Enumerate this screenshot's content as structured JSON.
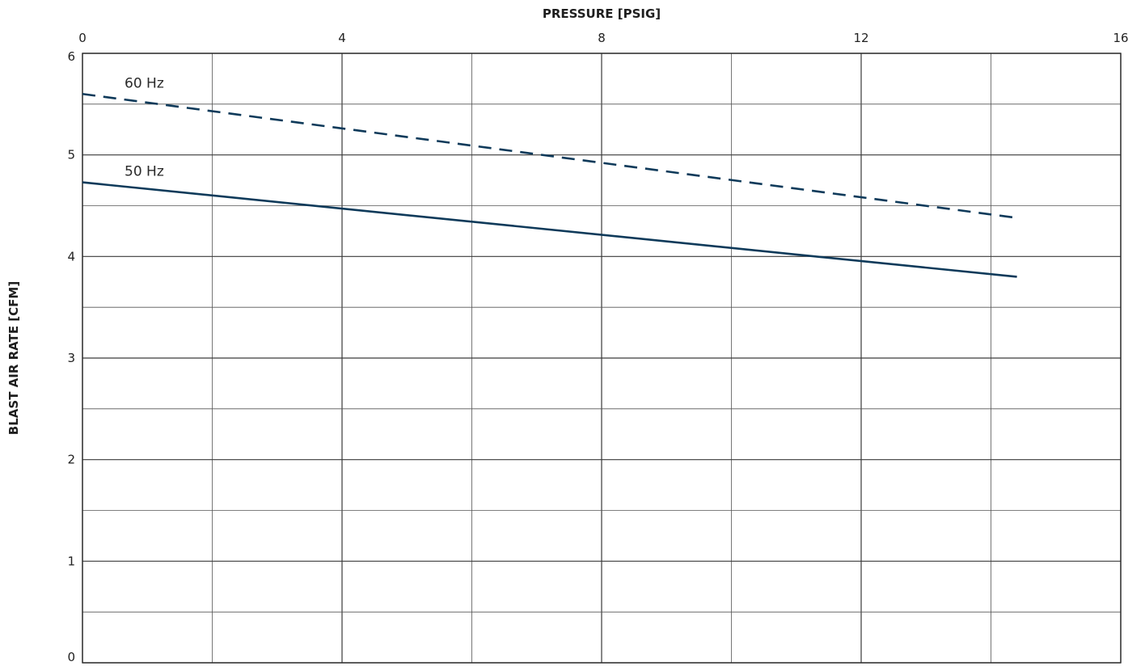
{
  "chart_data": {
    "type": "line",
    "xlabel": "PRESSURE  [PSIG]",
    "ylabel": "BLAST AIR RATE  [CFM]",
    "xlim": [
      0,
      16
    ],
    "ylim": [
      0,
      6
    ],
    "x_ticks": [
      0,
      4,
      8,
      12,
      16
    ],
    "y_ticks": [
      0,
      1,
      2,
      3,
      4,
      5,
      6
    ],
    "x_axis_position": "top",
    "grid": true,
    "series": [
      {
        "name": "60 Hz",
        "style": "dashed",
        "color": "#0e3a5a",
        "x": [
          0,
          14.4
        ],
        "y": [
          5.6,
          4.38
        ]
      },
      {
        "name": "50 Hz",
        "style": "solid",
        "color": "#0e3a5a",
        "x": [
          0,
          14.4
        ],
        "y": [
          4.73,
          3.8
        ]
      }
    ]
  }
}
